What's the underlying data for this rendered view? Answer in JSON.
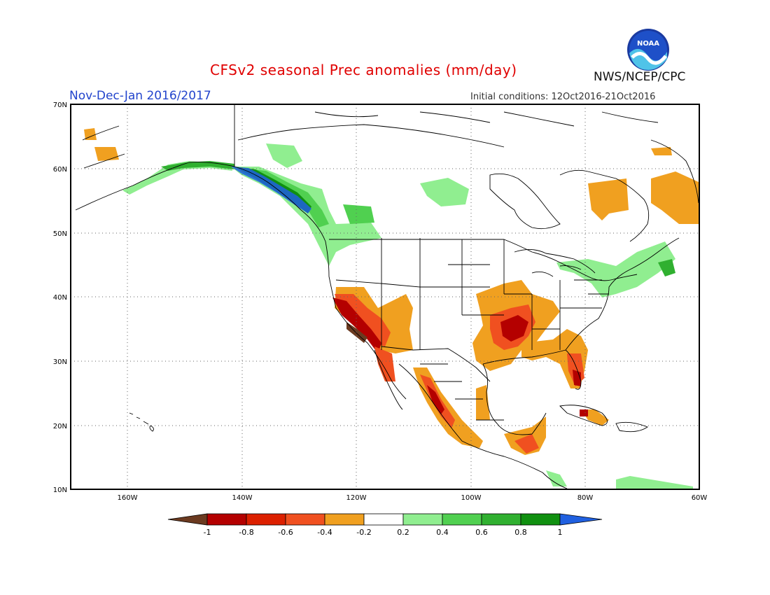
{
  "header": {
    "title": "CFSv2 seasonal Prec anomalies (mm/day)",
    "period": "Nov-Dec-Jan 2016/2017",
    "initial_conditions": "Initial conditions: 12Oct2016-21Oct2016",
    "organization": "NWS/NCEP/CPC",
    "logo_text": "NOAA"
  },
  "map": {
    "lat_labels": [
      "70N",
      "60N",
      "50N",
      "40N",
      "30N",
      "20N",
      "10N"
    ],
    "lon_labels": [
      "160W",
      "140W",
      "120W",
      "100W",
      "80W",
      "60W"
    ],
    "extent": {
      "lon": [
        -170,
        -60
      ],
      "lat": [
        10,
        70
      ]
    },
    "grid": "dotted"
  },
  "colorbar": {
    "ticks": [
      "-1",
      "-0.8",
      "-0.6",
      "-0.4",
      "-0.2",
      "0.2",
      "0.4",
      "0.6",
      "0.8",
      "1"
    ],
    "colors": [
      "#6b3a20",
      "#b40000",
      "#dc2000",
      "#f05020",
      "#f0a020",
      "#ffffff",
      "#90ee90",
      "#50d050",
      "#30b030",
      "#109010",
      "#2060e0"
    ]
  }
}
